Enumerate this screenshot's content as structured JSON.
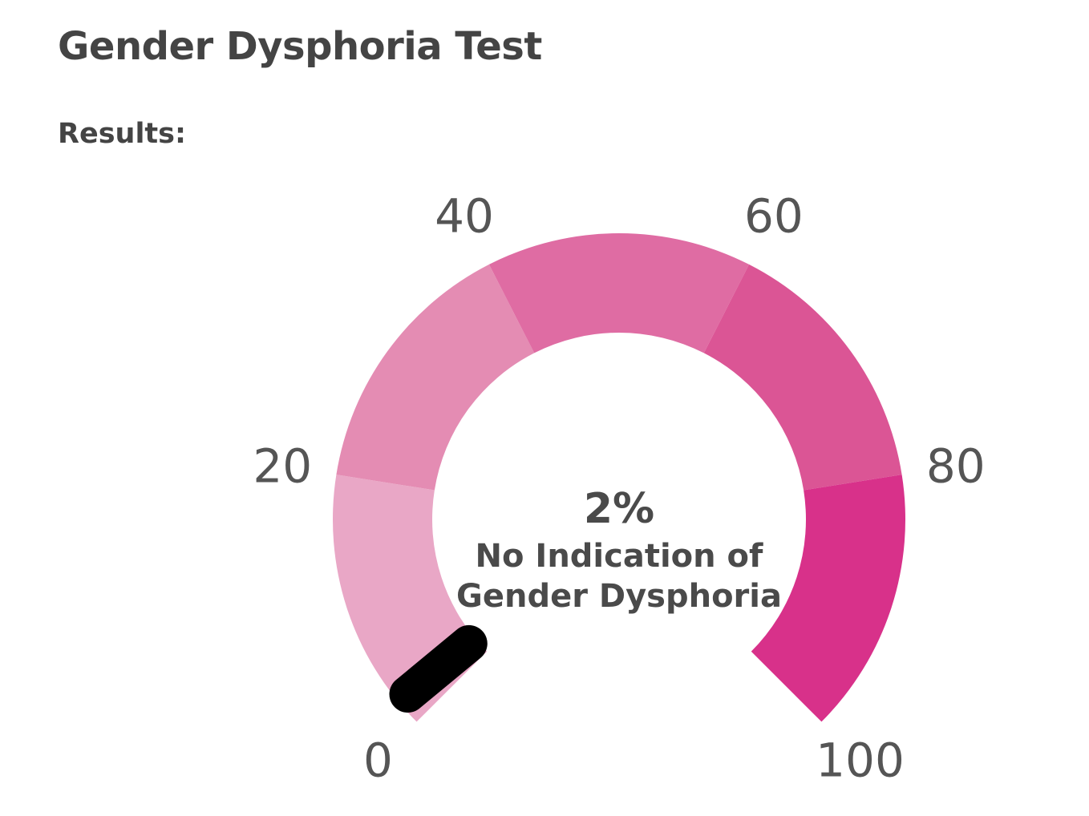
{
  "page": {
    "title": "Gender Dysphoria Test",
    "results_label": "Results:"
  },
  "chart_data": {
    "type": "gauge",
    "min": 0,
    "max": 100,
    "value": 2,
    "value_label": "2%",
    "caption_lines": [
      "No Indication of",
      "Gender Dysphoria"
    ],
    "ticks": [
      {
        "value": 0,
        "label": "0"
      },
      {
        "value": 20,
        "label": "20"
      },
      {
        "value": 40,
        "label": "40"
      },
      {
        "value": 60,
        "label": "60"
      },
      {
        "value": 80,
        "label": "80"
      },
      {
        "value": 100,
        "label": "100"
      }
    ],
    "bands": [
      {
        "from": 0,
        "to": 20,
        "color": "#e9a7c6"
      },
      {
        "from": 20,
        "to": 40,
        "color": "#e48cb3"
      },
      {
        "from": 40,
        "to": 60,
        "color": "#df6ca3"
      },
      {
        "from": 60,
        "to": 80,
        "color": "#db5595"
      },
      {
        "from": 80,
        "to": 100,
        "color": "#d8318a"
      }
    ],
    "needle_color": "#000000"
  }
}
